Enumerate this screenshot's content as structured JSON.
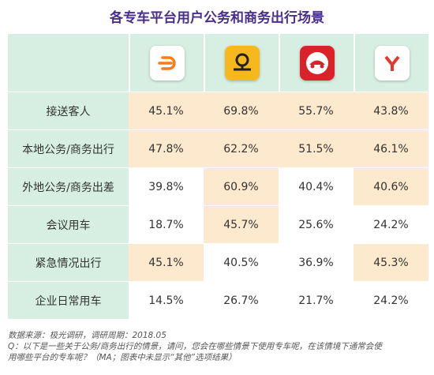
{
  "title": "各专车平台用户公务和商务出行场景",
  "chart_data": {
    "type": "table",
    "columns": [
      {
        "icon": "didi-logo-icon",
        "color": "#ff7a1a"
      },
      {
        "icon": "shouqi-logo-icon",
        "color": "#f6b81c"
      },
      {
        "icon": "shenzhou-logo-icon",
        "color": "#d9222a"
      },
      {
        "icon": "yidao-logo-icon",
        "color": "#e03a2f"
      }
    ],
    "rows": [
      {
        "label": "接送客人",
        "values": [
          "45.1%",
          "69.8%",
          "55.7%",
          "43.8%"
        ],
        "highlight": [
          true,
          true,
          true,
          true
        ]
      },
      {
        "label": "本地公务/商务出行",
        "values": [
          "47.8%",
          "62.2%",
          "51.5%",
          "46.1%"
        ],
        "highlight": [
          true,
          true,
          true,
          true
        ]
      },
      {
        "label": "外地公务/商务出差",
        "values": [
          "39.8%",
          "60.9%",
          "40.4%",
          "40.6%"
        ],
        "highlight": [
          false,
          true,
          false,
          true
        ]
      },
      {
        "label": "会议用车",
        "values": [
          "18.7%",
          "45.7%",
          "25.6%",
          "24.2%"
        ],
        "highlight": [
          false,
          true,
          false,
          false
        ]
      },
      {
        "label": "紧急情况出行",
        "values": [
          "45.1%",
          "40.5%",
          "36.9%",
          "45.3%"
        ],
        "highlight": [
          true,
          false,
          false,
          true
        ]
      },
      {
        "label": "企业日常用车",
        "values": [
          "14.5%",
          "26.7%",
          "21.7%",
          "24.2%"
        ],
        "highlight": [
          false,
          false,
          false,
          false
        ]
      }
    ]
  },
  "watermark": {
    "brand": "JIGUANG",
    "cn": "极光大数据"
  },
  "footer": {
    "source": "数据来源：极光调研，调研周期：2018.05",
    "question_line1": "Q：以下是一些关于公务/商务出行的情景，请问，您会在哪些情景下使用专车呢，在该情境下通常会使",
    "question_line2": "用哪些平台的专车呢？（MA；图表中未显示“其他”选项结果）"
  },
  "colors": {
    "header_bg": "#d6efe2",
    "highlight_bg": "#fde9cd",
    "title": "#4a2e8c"
  }
}
